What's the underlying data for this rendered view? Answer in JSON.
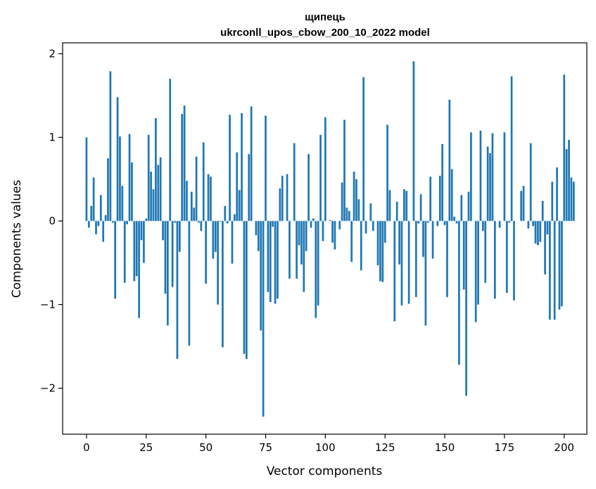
{
  "chart_data": {
    "type": "bar",
    "title": "щипець",
    "subtitle": "ukrconll_upos_cbow_200_10_2022 model",
    "xlabel": "Vector components",
    "ylabel": "Components values",
    "xlim": [
      -10,
      209.5
    ],
    "ylim": [
      -2.55,
      2.13
    ],
    "xticks": [
      0,
      25,
      50,
      75,
      100,
      125,
      150,
      175,
      200
    ],
    "yticks": [
      -2,
      -1,
      0,
      1,
      2
    ],
    "ytick_labels": [
      "−2",
      "−1",
      "0",
      "1",
      "2"
    ],
    "bar_color": "#1f77b4",
    "grid": false,
    "values": [
      1.0,
      -0.08,
      0.18,
      0.52,
      -0.16,
      -0.06,
      0.31,
      -0.25,
      0.07,
      0.75,
      1.79,
      -0.02,
      -0.93,
      1.48,
      1.01,
      0.42,
      -0.74,
      -0.04,
      1.04,
      0.7,
      -0.72,
      -0.66,
      -1.16,
      -0.23,
      -0.5,
      0.03,
      1.03,
      0.59,
      0.38,
      1.23,
      0.67,
      0.76,
      -0.23,
      -0.87,
      -1.25,
      1.7,
      -0.79,
      -0.02,
      -1.65,
      -0.37,
      1.28,
      1.38,
      0.48,
      -1.49,
      0.35,
      0.16,
      0.77,
      -0.02,
      -0.12,
      0.94,
      -0.75,
      0.56,
      0.53,
      -0.45,
      -0.37,
      -1.0,
      -0.01,
      -1.51,
      0.18,
      -0.03,
      1.27,
      -0.51,
      0.08,
      0.82,
      0.37,
      1.29,
      -1.59,
      -1.65,
      0.8,
      1.37,
      0.0,
      -0.17,
      -0.36,
      -1.31,
      -2.34,
      1.26,
      -0.85,
      -0.97,
      -0.07,
      -0.99,
      -0.93,
      0.39,
      0.54,
      0.0,
      0.56,
      -0.69,
      0.0,
      0.93,
      -0.69,
      -0.29,
      -0.52,
      -0.85,
      -0.36,
      0.8,
      -0.08,
      0.03,
      -1.16,
      -1.01,
      1.03,
      -0.24,
      1.24,
      0.0,
      0.01,
      -0.26,
      -0.34,
      0.0,
      -0.1,
      0.46,
      1.21,
      0.16,
      0.12,
      -0.49,
      0.59,
      0.5,
      0.26,
      -0.59,
      1.72,
      -0.15,
      0.0,
      0.21,
      -0.12,
      0.0,
      -0.53,
      -0.72,
      -0.73,
      -0.26,
      1.15,
      0.37,
      0.0,
      -1.2,
      0.23,
      -0.52,
      -1.01,
      0.38,
      0.36,
      -0.99,
      0.0,
      1.91,
      -0.91,
      -0.03,
      0.32,
      -0.43,
      -1.25,
      -0.02,
      0.53,
      -0.45,
      0.0,
      -0.06,
      0.54,
      0.92,
      -0.05,
      -0.91,
      1.45,
      0.62,
      0.05,
      -0.03,
      -1.72,
      0.31,
      -0.82,
      -2.09,
      0.35,
      1.06,
      0.0,
      -1.21,
      -1.0,
      1.08,
      -0.12,
      -0.74,
      0.89,
      0.81,
      1.05,
      -0.93,
      0.0,
      -0.08,
      0.0,
      1.06,
      -0.86,
      -0.02,
      1.73,
      -0.95,
      0.0,
      0.0,
      0.36,
      0.42,
      0.0,
      -0.09,
      0.93,
      -0.06,
      -0.27,
      -0.29,
      -0.25,
      0.24,
      -0.64,
      -0.16,
      -1.18,
      0.47,
      -1.18,
      0.64,
      -1.06,
      -1.02,
      1.75,
      0.86,
      0.97,
      0.52,
      0.47
    ]
  }
}
